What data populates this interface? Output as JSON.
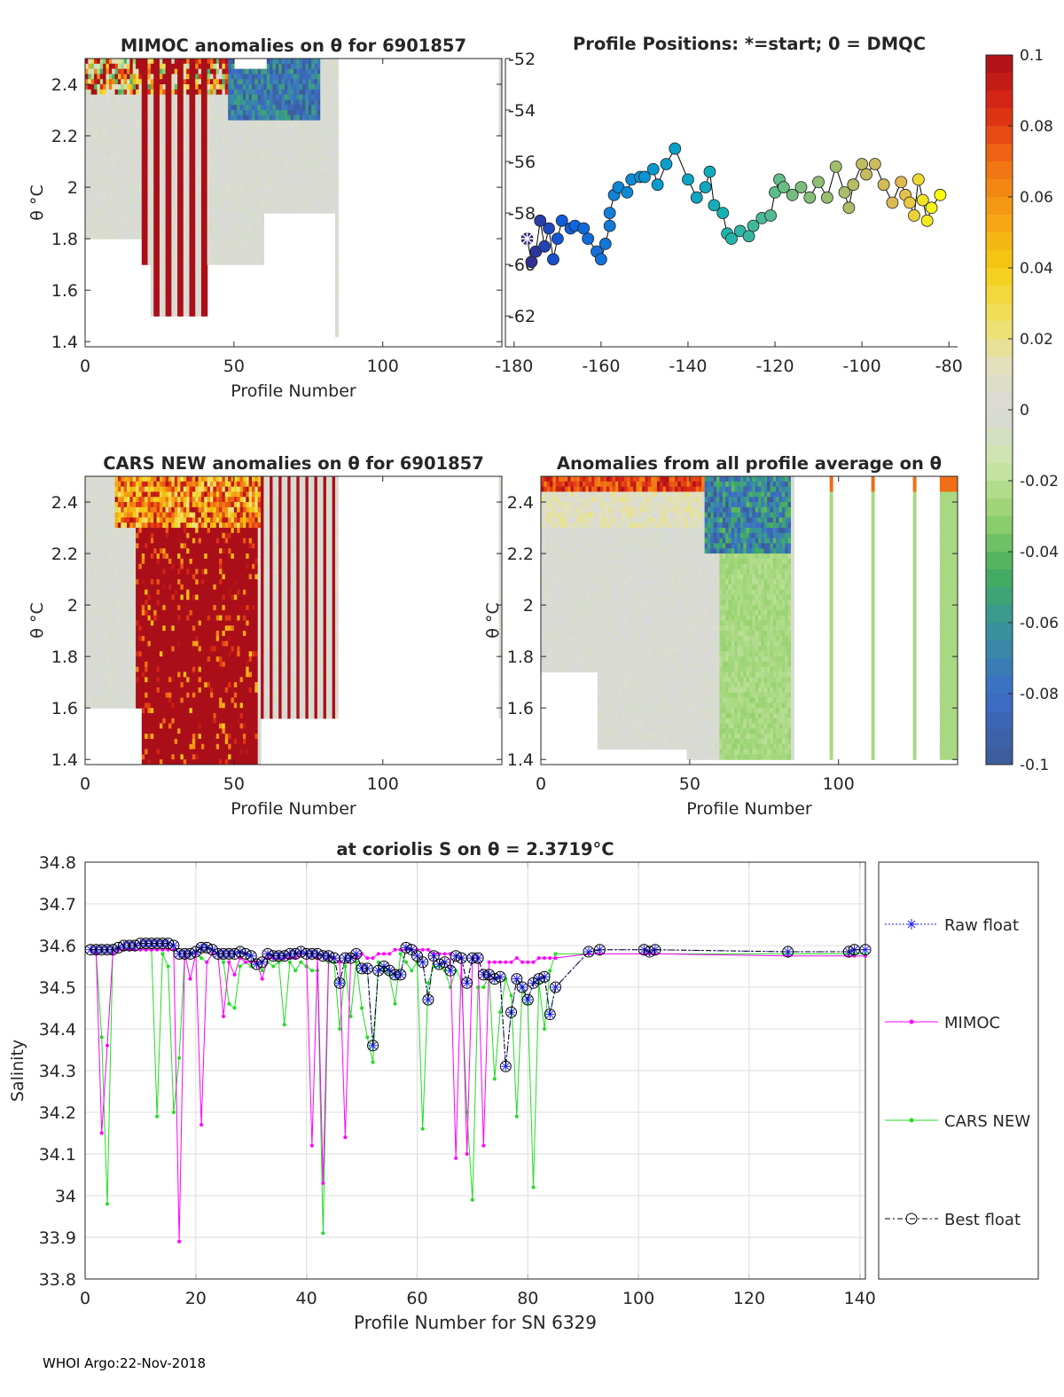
{
  "footer": "WHOI Argo:22-Nov-2018",
  "colorbar": {
    "ticks": [
      "0.1",
      "0.08",
      "0.06",
      "0.04",
      "0.02",
      "0",
      "-0.02",
      "-0.04",
      "-0.06",
      "-0.08",
      "-0.1"
    ],
    "range": [
      -0.1,
      0.1
    ]
  },
  "chart_data": [
    {
      "id": "mimoc",
      "type": "heatmap",
      "title": "MIMOC anomalies on θ  for 6901857",
      "xlabel": "Profile Number",
      "ylabel": "θ °C",
      "xlim": [
        0,
        140
      ],
      "ylim": [
        1.38,
        2.5
      ],
      "xticks": [
        "0",
        "50",
        "100"
      ],
      "yticks": [
        "1.4",
        "1.6",
        "1.8",
        "2",
        "2.2",
        "2.4"
      ]
    },
    {
      "id": "positions",
      "type": "scatter",
      "title": "Profile Positions: *=start; 0 = DMQC",
      "xlim": [
        -182,
        -78
      ],
      "ylim": [
        -63.2,
        -52
      ],
      "xticks": [
        "-180",
        "-160",
        "-140",
        "-120",
        "-100",
        "-80"
      ],
      "yticks": [
        "-52",
        "-54",
        "-56",
        "-58",
        "-60",
        "-62"
      ],
      "points": [
        [
          -177,
          -59
        ],
        [
          -176,
          -59.9
        ],
        [
          -175,
          -59.5
        ],
        [
          -174,
          -58.3
        ],
        [
          -173,
          -59.3
        ],
        [
          -172,
          -58.6
        ],
        [
          -171,
          -59.8
        ],
        [
          -170,
          -59
        ],
        [
          -169,
          -58.3
        ],
        [
          -167,
          -58.6
        ],
        [
          -166,
          -58.5
        ],
        [
          -164,
          -58.6
        ],
        [
          -163,
          -59
        ],
        [
          -161,
          -59.5
        ],
        [
          -160,
          -59.8
        ],
        [
          -159,
          -59.2
        ],
        [
          -158,
          -58.5
        ],
        [
          -158,
          -58
        ],
        [
          -157,
          -57.3
        ],
        [
          -156,
          -57
        ],
        [
          -154,
          -57.2
        ],
        [
          -153,
          -56.7
        ],
        [
          -151,
          -56.6
        ],
        [
          -150,
          -56.6
        ],
        [
          -148,
          -56.3
        ],
        [
          -147,
          -56.9
        ],
        [
          -145,
          -56.1
        ],
        [
          -143,
          -55.5
        ],
        [
          -140,
          -56.7
        ],
        [
          -138,
          -57.4
        ],
        [
          -136,
          -57
        ],
        [
          -135,
          -56.4
        ],
        [
          -134,
          -57.7
        ],
        [
          -132,
          -58
        ],
        [
          -131,
          -58.8
        ],
        [
          -130,
          -59
        ],
        [
          -128,
          -58.7
        ],
        [
          -126,
          -58.9
        ],
        [
          -125,
          -58.5
        ],
        [
          -123,
          -58.2
        ],
        [
          -121,
          -58.1
        ],
        [
          -120,
          -57.2
        ],
        [
          -119,
          -56.7
        ],
        [
          -118,
          -57
        ],
        [
          -116,
          -57.3
        ],
        [
          -114,
          -57
        ],
        [
          -112,
          -57.4
        ],
        [
          -110,
          -56.8
        ],
        [
          -108,
          -57.4
        ],
        [
          -106,
          -56.2
        ],
        [
          -104,
          -57.2
        ],
        [
          -103,
          -57.8
        ],
        [
          -102,
          -56.9
        ],
        [
          -100,
          -56.1
        ],
        [
          -99,
          -56.5
        ],
        [
          -97,
          -56.1
        ],
        [
          -95,
          -56.9
        ],
        [
          -93,
          -57.6
        ],
        [
          -91,
          -56.8
        ],
        [
          -90,
          -57.3
        ],
        [
          -89,
          -57.6
        ],
        [
          -88,
          -58.1
        ],
        [
          -87,
          -56.7
        ],
        [
          -86,
          -57.5
        ],
        [
          -85,
          -58.3
        ],
        [
          -84,
          -57.8
        ],
        [
          -82,
          -57.3
        ]
      ]
    },
    {
      "id": "cars",
      "type": "heatmap",
      "title": "CARS NEW anomalies on θ for 6901857",
      "xlabel": "Profile Number",
      "ylabel": "θ °C",
      "xlim": [
        0,
        140
      ],
      "ylim": [
        1.38,
        2.5
      ],
      "xticks": [
        "0",
        "50",
        "100"
      ],
      "yticks": [
        "1.4",
        "1.6",
        "1.8",
        "2",
        "2.2",
        "2.4"
      ]
    },
    {
      "id": "allavg",
      "type": "heatmap",
      "title": "Anomalies from all profile average on θ",
      "xlabel": "Profile Number",
      "ylabel": "θ °C",
      "xlim": [
        0,
        140
      ],
      "ylim": [
        1.38,
        2.5
      ],
      "xticks": [
        "0",
        "50",
        "100"
      ],
      "yticks": [
        "1.4",
        "1.6",
        "1.8",
        "2",
        "2.2",
        "2.4"
      ]
    },
    {
      "id": "salinity",
      "type": "line",
      "title": "at coriolis S on θ = 2.3719°C",
      "xlabel": "Profile Number for SN 6329",
      "ylabel": "Salinity",
      "xlim": [
        0,
        141
      ],
      "ylim": [
        33.8,
        34.8
      ],
      "xticks": [
        "0",
        "20",
        "40",
        "60",
        "80",
        "100",
        "120",
        "140"
      ],
      "yticks": [
        "33.8",
        "33.9",
        "34",
        "34.1",
        "34.2",
        "34.3",
        "34.4",
        "34.5",
        "34.6",
        "34.7",
        "34.8"
      ],
      "legend": [
        "Raw float",
        "MIMOC",
        "CARS NEW",
        "Best float"
      ],
      "x": [
        1,
        2,
        3,
        4,
        5,
        6,
        7,
        8,
        9,
        10,
        11,
        12,
        13,
        14,
        15,
        16,
        17,
        18,
        19,
        20,
        21,
        22,
        23,
        24,
        25,
        26,
        27,
        28,
        29,
        30,
        31,
        32,
        33,
        34,
        35,
        36,
        37,
        38,
        39,
        40,
        41,
        42,
        43,
        44,
        45,
        46,
        47,
        48,
        49,
        50,
        51,
        52,
        53,
        54,
        55,
        56,
        57,
        58,
        59,
        60,
        61,
        62,
        63,
        64,
        65,
        66,
        67,
        68,
        69,
        70,
        71,
        72,
        73,
        74,
        75,
        76,
        77,
        78,
        79,
        80,
        81,
        82,
        83,
        84,
        85,
        91,
        93,
        101,
        102,
        103,
        127,
        138,
        139,
        141
      ],
      "series": [
        {
          "name": "Raw float",
          "values": [
            34.59,
            34.59,
            34.59,
            34.59,
            34.59,
            34.595,
            34.6,
            34.6,
            34.6,
            34.605,
            34.605,
            34.605,
            34.605,
            34.605,
            34.605,
            34.6,
            34.58,
            34.58,
            34.58,
            34.585,
            34.595,
            34.595,
            34.59,
            34.58,
            34.58,
            34.58,
            34.58,
            34.585,
            34.58,
            34.575,
            34.555,
            34.56,
            34.58,
            34.575,
            34.575,
            34.575,
            34.58,
            34.58,
            34.585,
            34.58,
            34.58,
            34.58,
            34.575,
            34.575,
            34.57,
            34.51,
            34.57,
            34.57,
            34.58,
            34.545,
            34.545,
            34.36,
            34.54,
            34.55,
            34.54,
            34.53,
            34.53,
            34.595,
            34.59,
            34.575,
            34.56,
            34.47,
            34.575,
            34.555,
            34.56,
            34.54,
            34.575,
            34.57,
            34.51,
            34.57,
            34.57,
            34.53,
            34.53,
            34.52,
            34.525,
            34.31,
            34.44,
            34.52,
            34.5,
            34.47,
            34.51,
            34.52,
            34.525,
            34.435,
            34.5,
            34.585,
            34.59,
            34.59,
            34.585,
            34.59,
            34.585,
            34.585,
            34.59,
            34.59
          ]
        },
        {
          "name": "MIMOC",
          "values": [
            34.59,
            34.58,
            34.15,
            34.36,
            34.58,
            34.59,
            34.59,
            34.59,
            34.59,
            34.59,
            34.59,
            34.59,
            34.59,
            34.59,
            34.59,
            34.59,
            33.89,
            34.58,
            34.52,
            34.58,
            34.17,
            34.56,
            34.58,
            34.58,
            34.43,
            34.56,
            34.53,
            34.57,
            34.56,
            34.56,
            34.56,
            34.52,
            34.57,
            34.57,
            34.57,
            34.57,
            34.57,
            34.57,
            34.58,
            34.58,
            34.12,
            34.57,
            34.03,
            34.57,
            34.57,
            34.56,
            34.14,
            34.57,
            34.57,
            34.58,
            34.57,
            34.57,
            34.58,
            34.58,
            34.58,
            34.59,
            34.59,
            34.59,
            34.59,
            34.59,
            34.59,
            34.59,
            34.58,
            34.58,
            34.58,
            34.58,
            34.09,
            34.57,
            34.1,
            34.57,
            34.57,
            34.12,
            34.56,
            34.56,
            34.56,
            34.56,
            34.56,
            34.57,
            34.56,
            34.56,
            34.56,
            34.57,
            34.57,
            34.57,
            34.57,
            34.58,
            34.58,
            34.58,
            34.58,
            34.58,
            34.575,
            34.575,
            34.575,
            34.575
          ]
        },
        {
          "name": "CARS NEW",
          "values": [
            34.59,
            34.58,
            34.38,
            33.98,
            34.59,
            34.59,
            34.59,
            34.59,
            34.59,
            34.59,
            34.59,
            34.59,
            34.19,
            34.58,
            34.55,
            34.2,
            34.33,
            34.58,
            34.58,
            34.58,
            34.57,
            34.56,
            34.58,
            34.58,
            34.56,
            34.46,
            34.45,
            34.55,
            34.56,
            34.55,
            34.56,
            34.54,
            34.56,
            34.55,
            34.56,
            34.41,
            34.56,
            34.54,
            34.56,
            34.55,
            34.54,
            34.54,
            33.91,
            34.56,
            34.56,
            34.4,
            34.55,
            34.43,
            34.56,
            34.45,
            34.38,
            34.32,
            34.56,
            34.54,
            34.53,
            34.46,
            34.58,
            34.56,
            34.54,
            34.56,
            34.16,
            34.51,
            34.55,
            34.55,
            34.54,
            34.5,
            34.54,
            34.52,
            34.2,
            33.99,
            34.5,
            34.5,
            34.53,
            34.28,
            34.44,
            34.52,
            34.48,
            34.19,
            34.5,
            34.46,
            34.02,
            34.51,
            34.4,
            34.54,
            34.58,
            34.58,
            34.58,
            34.58,
            34.58,
            34.58,
            34.58,
            34.58,
            34.58,
            34.58
          ]
        },
        {
          "name": "Best float",
          "values": [
            34.59,
            34.59,
            34.59,
            34.59,
            34.59,
            34.595,
            34.6,
            34.6,
            34.6,
            34.605,
            34.605,
            34.605,
            34.605,
            34.605,
            34.605,
            34.6,
            34.58,
            34.58,
            34.58,
            34.585,
            34.595,
            34.595,
            34.59,
            34.58,
            34.58,
            34.58,
            34.58,
            34.585,
            34.58,
            34.575,
            34.555,
            34.56,
            34.58,
            34.575,
            34.575,
            34.575,
            34.58,
            34.58,
            34.585,
            34.58,
            34.58,
            34.58,
            34.575,
            34.575,
            34.57,
            34.51,
            34.57,
            34.57,
            34.58,
            34.545,
            34.545,
            34.36,
            34.54,
            34.55,
            34.54,
            34.53,
            34.53,
            34.595,
            34.59,
            34.575,
            34.56,
            34.47,
            34.575,
            34.555,
            34.56,
            34.54,
            34.575,
            34.57,
            34.51,
            34.57,
            34.57,
            34.53,
            34.53,
            34.52,
            34.525,
            34.31,
            34.44,
            34.52,
            34.5,
            34.47,
            34.51,
            34.52,
            34.525,
            34.435,
            34.5,
            34.585,
            34.59,
            34.59,
            34.585,
            34.59,
            34.585,
            34.585,
            34.59,
            34.59
          ]
        }
      ]
    }
  ]
}
